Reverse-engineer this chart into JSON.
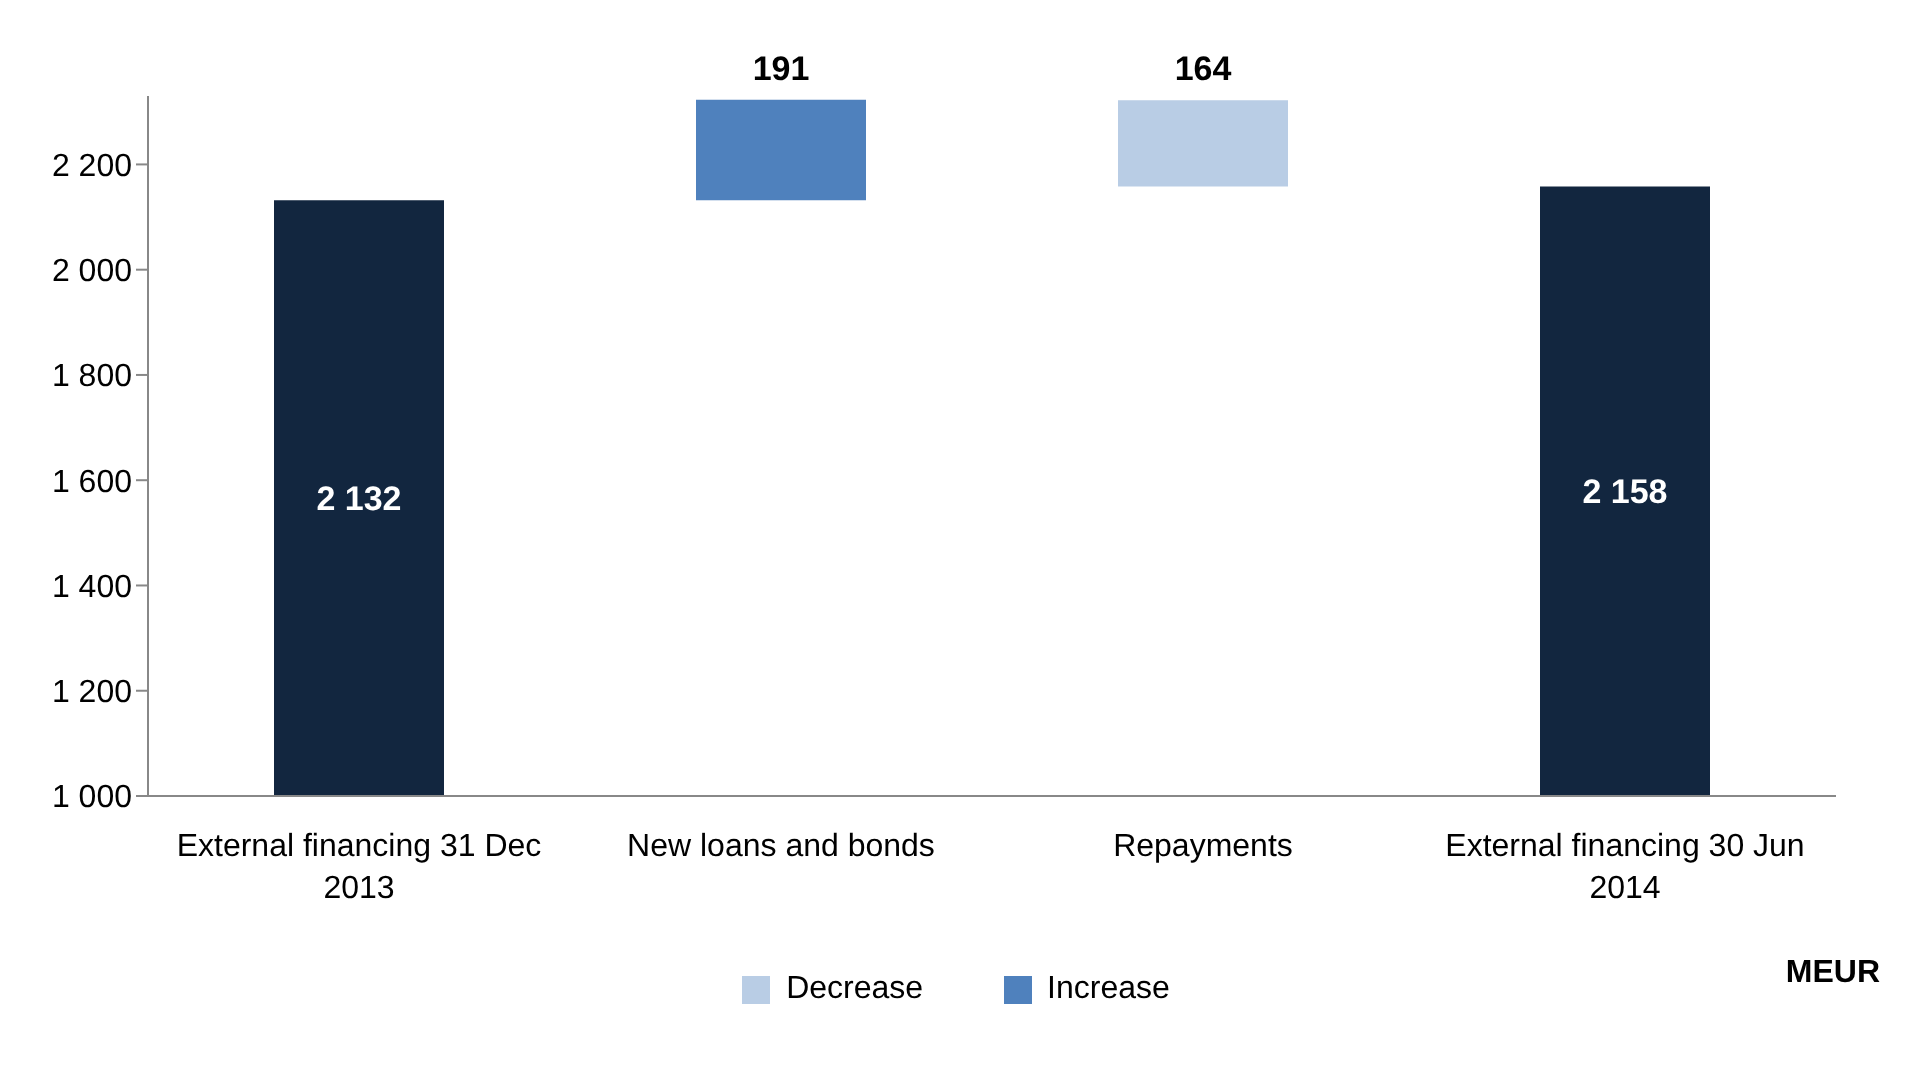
{
  "chart_data": {
    "type": "bar",
    "categories": [
      "External financing 31 Dec 2013",
      "New loans and bonds",
      "Repayments",
      "External financing 30 Jun 2014"
    ],
    "series": [
      {
        "color": "#12263f",
        "values": [
          2132,
          null,
          null,
          2158
        ],
        "value_labels": [
          "2 132",
          null,
          null,
          "2 158"
        ]
      },
      {
        "name": "Decrease",
        "color": "#b9cde5",
        "values": [
          null,
          null,
          164,
          null
        ],
        "base": [
          null,
          null,
          2158,
          null
        ],
        "value_labels": [
          null,
          null,
          "164",
          null
        ]
      },
      {
        "name": "Increase",
        "color": "#4f81bd",
        "values": [
          null,
          191,
          null,
          null
        ],
        "base": [
          null,
          2132,
          null,
          null
        ],
        "value_labels": [
          null,
          "191",
          null,
          null
        ]
      }
    ],
    "ylim": [
      1000,
      2330
    ],
    "yticks": [
      {
        "value": 1000,
        "label": "1 000"
      },
      {
        "value": 1200,
        "label": "1 200"
      },
      {
        "value": 1400,
        "label": "1 400"
      },
      {
        "value": 1600,
        "label": "1 600"
      },
      {
        "value": 1800,
        "label": "1 800"
      },
      {
        "value": 2000,
        "label": "2 000"
      },
      {
        "value": 2200,
        "label": "2 200"
      }
    ],
    "grid": false,
    "legend": "bottom",
    "annotations": [
      "MEUR"
    ]
  }
}
